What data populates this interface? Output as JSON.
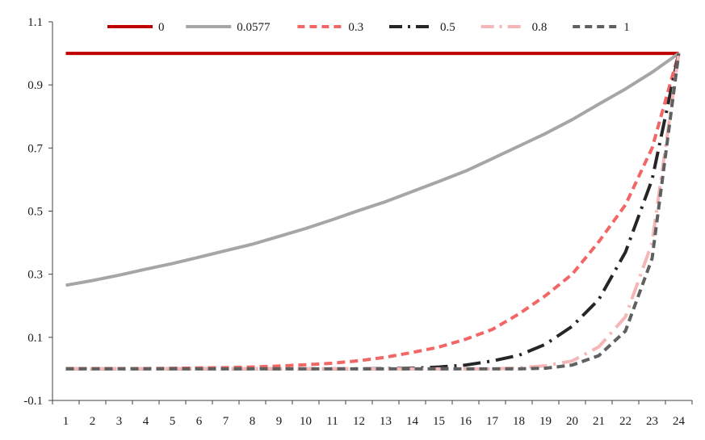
{
  "chart_data": {
    "type": "line",
    "title": "",
    "xlabel": "",
    "ylabel": "",
    "x": [
      1,
      2,
      3,
      4,
      5,
      6,
      7,
      8,
      9,
      10,
      11,
      12,
      13,
      14,
      15,
      16,
      17,
      18,
      19,
      20,
      21,
      22,
      23,
      24
    ],
    "ylim": [
      -0.1,
      1.1
    ],
    "yticks": [
      "-0.1",
      "0.1",
      "0.3",
      "0.5",
      "0.7",
      "0.9",
      "1.1"
    ],
    "xticks": [
      "1",
      "2",
      "3",
      "4",
      "5",
      "6",
      "7",
      "8",
      "9",
      "10",
      "11",
      "12",
      "13",
      "14",
      "15",
      "16",
      "17",
      "18",
      "19",
      "20",
      "21",
      "22",
      "23",
      "24"
    ],
    "grid": false,
    "legend_position": "top",
    "series": [
      {
        "name": "0",
        "color": "#c00000",
        "dash": "solid",
        "values": [
          1,
          1,
          1,
          1,
          1,
          1,
          1,
          1,
          1,
          1,
          1,
          1,
          1,
          1,
          1,
          1,
          1,
          1,
          1,
          1,
          1,
          1,
          1,
          1
        ]
      },
      {
        "name": "0.0577",
        "color": "#a6a6a6",
        "dash": "solid",
        "values": [
          0.265,
          0.28,
          0.297,
          0.316,
          0.334,
          0.354,
          0.375,
          0.395,
          0.42,
          0.445,
          0.473,
          0.502,
          0.53,
          0.562,
          0.594,
          0.627,
          0.666,
          0.706,
          0.746,
          0.79,
          0.839,
          0.887,
          0.94,
          1.0
        ]
      },
      {
        "name": "0.3",
        "color": "#f26666",
        "dash": "short-dash",
        "values": [
          0.001,
          0.001,
          0.001,
          0.001,
          0.002,
          0.003,
          0.004,
          0.006,
          0.009,
          0.013,
          0.018,
          0.026,
          0.037,
          0.052,
          0.069,
          0.094,
          0.125,
          0.174,
          0.232,
          0.3,
          0.403,
          0.52,
          0.7,
          1.0
        ]
      },
      {
        "name": "0.5",
        "color": "#262626",
        "dash": "long-dash-dot",
        "values": [
          0,
          0,
          0,
          0,
          0,
          0,
          0,
          0,
          0,
          0,
          0,
          0,
          0.001,
          0.002,
          0.006,
          0.012,
          0.025,
          0.043,
          0.078,
          0.135,
          0.22,
          0.37,
          0.6,
          1.0
        ]
      },
      {
        "name": "0.8",
        "color": "#f4b6b6",
        "dash": "long-dash-dot",
        "values": [
          0,
          0,
          0,
          0,
          0,
          0,
          0,
          0,
          0,
          0,
          0,
          0,
          0,
          0,
          0,
          0,
          0,
          0.003,
          0.01,
          0.025,
          0.07,
          0.165,
          0.4,
          1.0
        ]
      },
      {
        "name": "1",
        "color": "#606060",
        "dash": "short-dash",
        "values": [
          0,
          0,
          0,
          0,
          0,
          0,
          0,
          0,
          0,
          0,
          0,
          0,
          0,
          0,
          0,
          0,
          0,
          0,
          0.002,
          0.012,
          0.042,
          0.12,
          0.35,
          1.0
        ]
      }
    ]
  }
}
